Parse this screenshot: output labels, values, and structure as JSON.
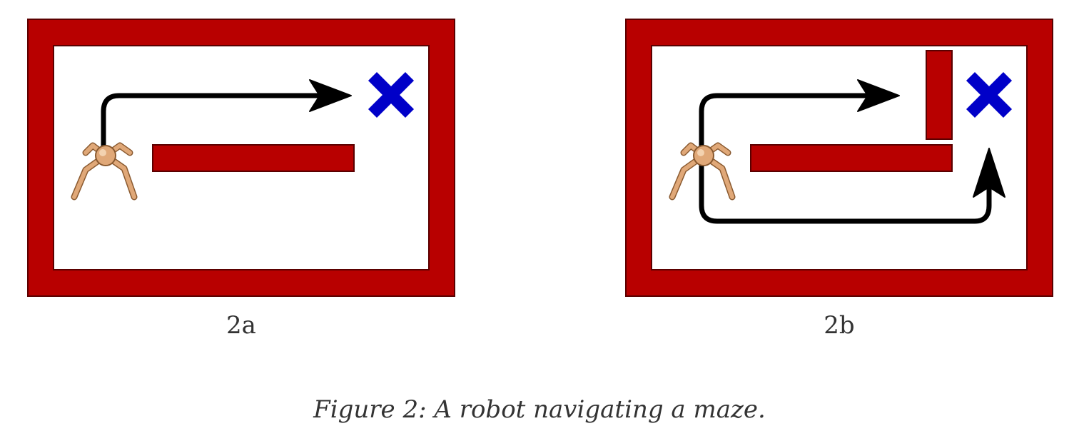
{
  "panels": [
    {
      "id": "a",
      "label": "2a",
      "has_vertical_wall": false,
      "path": "direct"
    },
    {
      "id": "b",
      "label": "2b",
      "has_vertical_wall": true,
      "path": "detour"
    }
  ],
  "caption": "Figure 2: A robot navigating a maze.",
  "colors": {
    "wall": "#b80000",
    "wall_stroke": "#5a0000",
    "goal": "#0000c8",
    "robot": "#e0a878",
    "robot_stroke": "#8a5a30",
    "path": "#000000"
  },
  "icons": {
    "robot": "ant-robot-icon",
    "goal": "x-goal-icon"
  }
}
